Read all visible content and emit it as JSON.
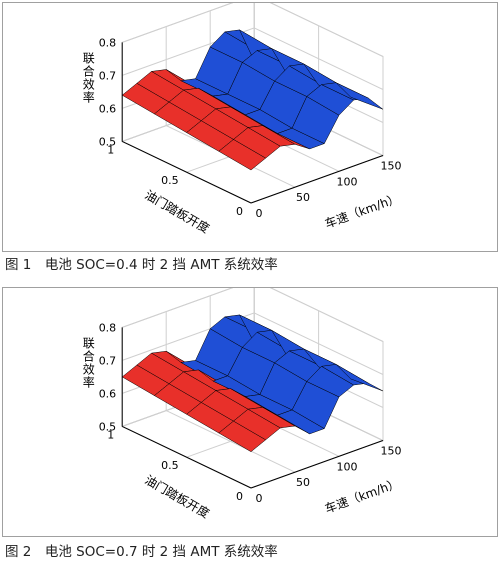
{
  "captions": [
    "图 1　电池 SOC=0.4 时 2 挡 AMT 系统效率",
    "图 2　电池 SOC=0.7 时 2 挡 AMT 系统效率"
  ],
  "colors": {
    "red": "#e8302a",
    "blue": "#1f4fd6",
    "grid": "#cfcfcf",
    "axis": "#000000"
  },
  "chart_data": [
    {
      "type": "surface",
      "title": "",
      "zlabel": "联合效率",
      "xlabel": "车速（km/h）",
      "ylabel": "油门踏板开度",
      "x_ticks": [
        "0",
        "50",
        "100",
        "150"
      ],
      "y_ticks": [
        "0",
        "0.5",
        "1"
      ],
      "z_ticks": [
        "0.5",
        "0.6",
        "0.7",
        "0.8"
      ],
      "xlim": [
        0,
        150
      ],
      "ylim": [
        0,
        1
      ],
      "zlim": [
        0.5,
        0.8
      ],
      "grid": true,
      "series": [
        {
          "color": "#e8302a",
          "x": [
            0,
            75
          ]
        },
        {
          "color": "#1f4fd6",
          "x": [
            75,
            150
          ]
        }
      ],
      "z": [
        [
          0.64,
          0.66,
          0.68,
          0.67,
          0.62,
          0.61,
          0.69,
          0.72,
          0.71,
          0.6
        ],
        [
          0.63,
          0.65,
          0.67,
          0.66,
          0.62,
          0.61,
          0.69,
          0.71,
          0.7,
          0.61
        ],
        [
          0.62,
          0.64,
          0.66,
          0.65,
          0.61,
          0.61,
          0.68,
          0.71,
          0.7,
          0.62
        ],
        [
          0.61,
          0.63,
          0.65,
          0.64,
          0.6,
          0.6,
          0.68,
          0.7,
          0.69,
          0.63
        ],
        [
          0.6,
          0.62,
          0.64,
          0.63,
          0.6,
          0.6,
          0.67,
          0.7,
          0.69,
          0.64
        ]
      ]
    },
    {
      "type": "surface",
      "title": "",
      "zlabel": "联合效率",
      "xlabel": "车速（km/h）",
      "ylabel": "油门踏板开度",
      "x_ticks": [
        "0",
        "50",
        "100",
        "150"
      ],
      "y_ticks": [
        "0",
        "0.5",
        "1"
      ],
      "z_ticks": [
        "0.5",
        "0.6",
        "0.7",
        "0.8"
      ],
      "xlim": [
        0,
        150
      ],
      "ylim": [
        0,
        1
      ],
      "zlim": [
        0.5,
        0.8
      ],
      "grid": true,
      "series": [
        {
          "color": "#e8302a",
          "x": [
            0,
            75
          ]
        },
        {
          "color": "#1f4fd6",
          "x": [
            75,
            150
          ]
        }
      ],
      "z": [
        [
          0.65,
          0.67,
          0.69,
          0.68,
          0.63,
          0.62,
          0.7,
          0.72,
          0.71,
          0.61
        ],
        [
          0.64,
          0.66,
          0.68,
          0.67,
          0.62,
          0.62,
          0.69,
          0.72,
          0.71,
          0.62
        ],
        [
          0.63,
          0.65,
          0.67,
          0.66,
          0.62,
          0.61,
          0.69,
          0.71,
          0.7,
          0.63
        ],
        [
          0.62,
          0.64,
          0.66,
          0.65,
          0.61,
          0.61,
          0.68,
          0.71,
          0.7,
          0.64
        ],
        [
          0.61,
          0.63,
          0.65,
          0.64,
          0.6,
          0.6,
          0.68,
          0.7,
          0.69,
          0.65
        ]
      ]
    }
  ]
}
